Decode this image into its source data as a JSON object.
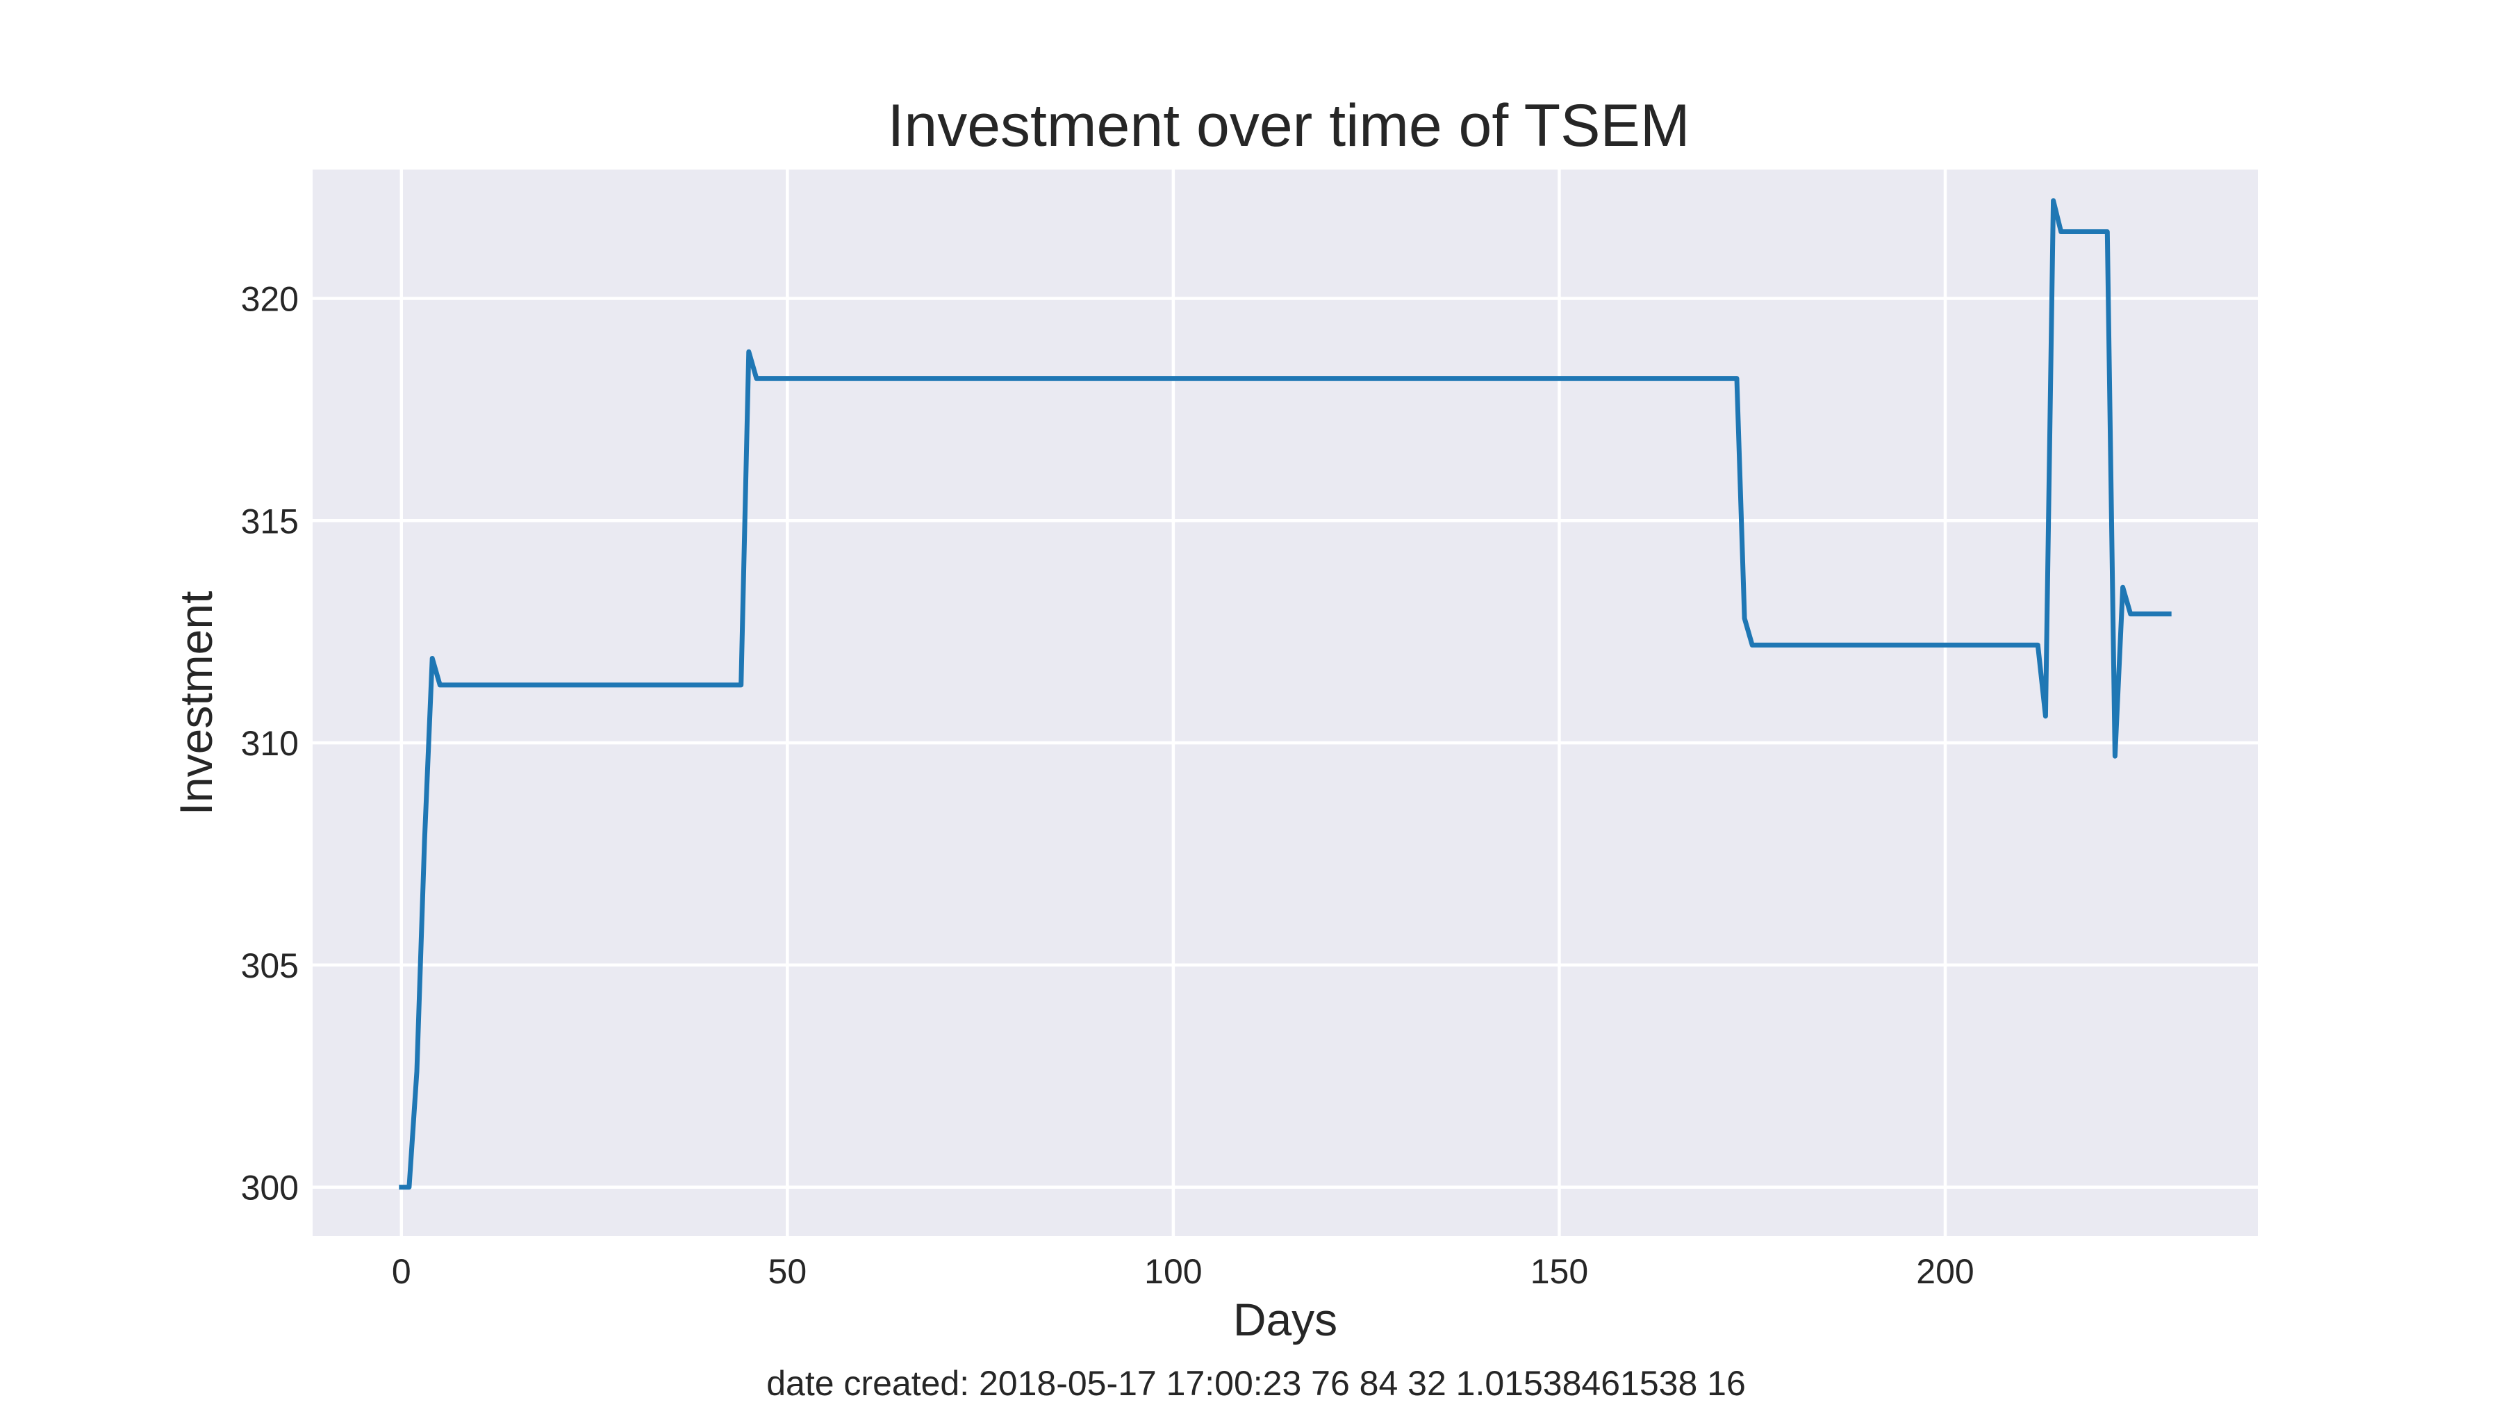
{
  "chart_data": {
    "type": "line",
    "title": "Investment over time of TSEM",
    "xlabel": "Days",
    "ylabel": "Investment",
    "xlim": [
      -11.5,
      240.5
    ],
    "ylim": [
      298.9,
      322.9
    ],
    "xticks": [
      0,
      50,
      100,
      150,
      200
    ],
    "yticks": [
      300,
      305,
      310,
      315,
      320
    ],
    "grid": true,
    "background": "#eaeaf2",
    "line_color": "#1f77b4",
    "series": [
      {
        "x": [
          0,
          1,
          2,
          3,
          4,
          5,
          44,
          45,
          46,
          173,
          174,
          175,
          212,
          213,
          214,
          215,
          221,
          222,
          223,
          224,
          229
        ],
        "y": [
          300.0,
          300.0,
          302.6,
          307.8,
          311.9,
          311.3,
          311.3,
          318.8,
          318.2,
          318.2,
          312.8,
          312.2,
          312.2,
          310.6,
          322.2,
          321.5,
          321.5,
          309.7,
          313.5,
          312.9,
          312.9
        ]
      }
    ]
  },
  "footer": {
    "text": "date created: 2018-05-17 17:00:23 76 84 32 1.01538461538 16"
  }
}
